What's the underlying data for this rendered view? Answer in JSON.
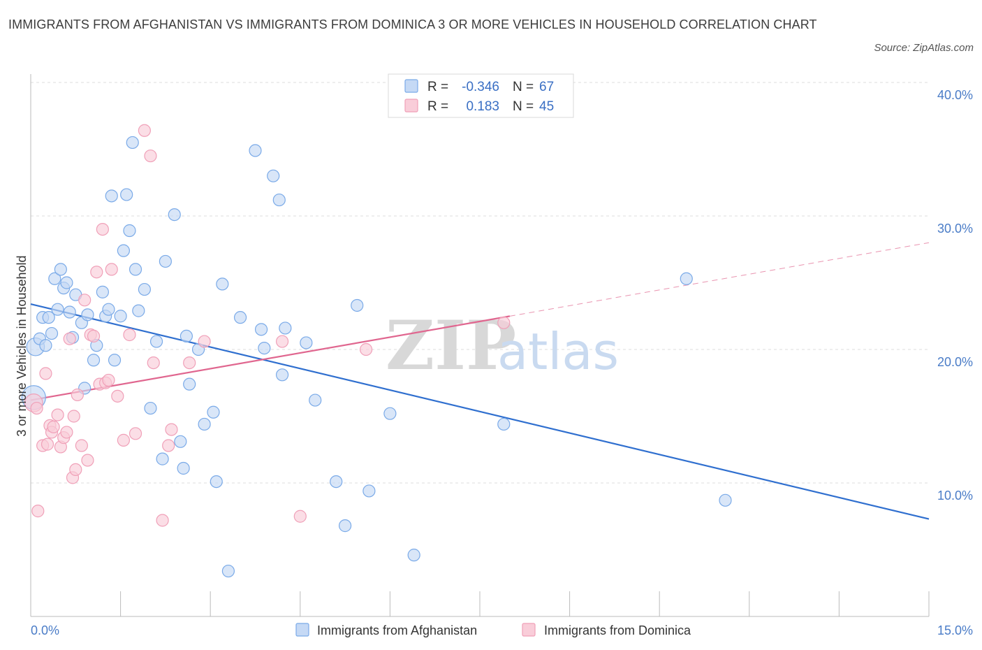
{
  "title": "IMMIGRANTS FROM AFGHANISTAN VS IMMIGRANTS FROM DOMINICA 3 OR MORE VEHICLES IN HOUSEHOLD CORRELATION CHART",
  "source": "Source: ZipAtlas.com",
  "watermark": {
    "zip": "ZIP",
    "atlas": "atlas"
  },
  "legend": {
    "rows": [
      {
        "r_label": "R =",
        "r_value": "-0.346",
        "n_label": "N =",
        "n_value": "67",
        "color": "#7aaae8"
      },
      {
        "r_label": "R =",
        "r_value": "0.183",
        "n_label": "N =",
        "n_value": "45",
        "color": "#f0a0b8"
      }
    ]
  },
  "colors": {
    "blue_fill": "#c5d9f5",
    "blue_stroke": "#7aaae8",
    "blue_line": "#2f6fcf",
    "pink_fill": "#f9cdd9",
    "pink_stroke": "#f0a0b8",
    "pink_line": "#e0668f",
    "grid": "#dddddd",
    "tick_text": "#4a7cc7"
  },
  "chart_data": {
    "type": "scatter",
    "title": "IMMIGRANTS FROM AFGHANISTAN VS IMMIGRANTS FROM DOMINICA 3 OR MORE VEHICLES IN HOUSEHOLD CORRELATION CHART",
    "xlabel": "",
    "ylabel": "3 or more Vehicles in Household",
    "xlim": [
      0,
      15
    ],
    "ylim": [
      0,
      40
    ],
    "x_tick_labels": {
      "min": "0.0%",
      "max": "15.0%"
    },
    "y_ticks": [
      {
        "value": 10,
        "label": "10.0%"
      },
      {
        "value": 20,
        "label": "20.0%"
      },
      {
        "value": 30,
        "label": "30.0%"
      },
      {
        "value": 40,
        "label": "40.0%"
      }
    ],
    "grid": true,
    "legend_position": "top-center",
    "series": [
      {
        "name": "Immigrants from Afghanistan",
        "color": "#7aaae8",
        "trend": {
          "x0": 0,
          "y0": 23.4,
          "x1": 15,
          "y1": 7.3,
          "solid_to": 15
        },
        "points": [
          [
            0.05,
            16.4,
            2
          ],
          [
            0.08,
            20.2,
            1.5
          ],
          [
            0.15,
            20.8,
            1
          ],
          [
            0.2,
            22.4,
            1
          ],
          [
            0.25,
            20.3,
            1
          ],
          [
            0.3,
            22.4,
            1
          ],
          [
            0.35,
            21.2,
            1
          ],
          [
            0.4,
            25.3,
            1
          ],
          [
            0.45,
            23.0,
            1
          ],
          [
            0.5,
            26.0,
            1
          ],
          [
            0.55,
            24.6,
            1
          ],
          [
            0.6,
            25.0,
            1
          ],
          [
            0.65,
            22.8,
            1
          ],
          [
            0.7,
            20.9,
            1
          ],
          [
            0.75,
            24.1,
            1
          ],
          [
            0.85,
            22.0,
            1
          ],
          [
            0.9,
            17.1,
            1
          ],
          [
            0.95,
            22.6,
            1
          ],
          [
            1.05,
            19.2,
            1
          ],
          [
            1.1,
            20.3,
            1
          ],
          [
            1.2,
            24.3,
            1
          ],
          [
            1.25,
            22.5,
            1
          ],
          [
            1.3,
            23.0,
            1
          ],
          [
            1.35,
            31.5,
            1
          ],
          [
            1.4,
            19.2,
            1
          ],
          [
            1.5,
            22.5,
            1
          ],
          [
            1.55,
            27.4,
            1
          ],
          [
            1.6,
            31.6,
            1
          ],
          [
            1.65,
            28.9,
            1
          ],
          [
            1.7,
            35.5,
            1
          ],
          [
            1.75,
            26.0,
            1
          ],
          [
            1.8,
            22.9,
            1
          ],
          [
            1.9,
            24.5,
            1
          ],
          [
            2.0,
            15.6,
            1
          ],
          [
            2.1,
            20.6,
            1
          ],
          [
            2.2,
            11.8,
            1
          ],
          [
            2.25,
            26.6,
            1
          ],
          [
            2.4,
            30.1,
            1
          ],
          [
            2.5,
            13.1,
            1
          ],
          [
            2.55,
            11.1,
            1
          ],
          [
            2.6,
            21.0,
            1
          ],
          [
            2.65,
            17.4,
            1
          ],
          [
            2.8,
            20.0,
            1
          ],
          [
            2.9,
            14.4,
            1
          ],
          [
            3.05,
            15.3,
            1
          ],
          [
            3.1,
            10.1,
            1
          ],
          [
            3.2,
            24.9,
            1
          ],
          [
            3.3,
            3.4,
            1
          ],
          [
            3.5,
            22.4,
            1
          ],
          [
            3.75,
            34.9,
            1
          ],
          [
            3.85,
            21.5,
            1
          ],
          [
            3.9,
            20.1,
            1
          ],
          [
            4.05,
            33.0,
            1
          ],
          [
            4.15,
            31.2,
            1
          ],
          [
            4.2,
            18.1,
            1
          ],
          [
            4.25,
            21.6,
            1
          ],
          [
            4.6,
            20.5,
            1
          ],
          [
            4.75,
            16.2,
            1
          ],
          [
            5.1,
            10.1,
            1
          ],
          [
            5.25,
            6.8,
            1
          ],
          [
            5.45,
            23.3,
            1
          ],
          [
            5.65,
            9.4,
            1
          ],
          [
            6.0,
            15.2,
            1
          ],
          [
            6.4,
            4.6,
            1
          ],
          [
            7.9,
            14.4,
            1
          ],
          [
            10.95,
            25.3,
            1
          ],
          [
            11.6,
            8.7,
            1
          ]
        ]
      },
      {
        "name": "Immigrants from Dominica",
        "color": "#f0a0b8",
        "trend": {
          "x0": 0,
          "y0": 16.2,
          "x1": 15,
          "y1": 28.0,
          "solid_to": 8.0
        },
        "points": [
          [
            0.05,
            16.0,
            1.5
          ],
          [
            0.1,
            15.6,
            1
          ],
          [
            0.12,
            7.9,
            1
          ],
          [
            0.2,
            12.8,
            1
          ],
          [
            0.25,
            18.2,
            1
          ],
          [
            0.28,
            12.9,
            1
          ],
          [
            0.32,
            14.3,
            1
          ],
          [
            0.35,
            13.8,
            1
          ],
          [
            0.38,
            14.2,
            1
          ],
          [
            0.45,
            15.1,
            1
          ],
          [
            0.5,
            12.7,
            1
          ],
          [
            0.55,
            13.4,
            1
          ],
          [
            0.6,
            13.8,
            1
          ],
          [
            0.65,
            20.8,
            1
          ],
          [
            0.7,
            10.4,
            1
          ],
          [
            0.72,
            15.0,
            1
          ],
          [
            0.75,
            11.0,
            1
          ],
          [
            0.78,
            16.6,
            1
          ],
          [
            0.85,
            12.8,
            1
          ],
          [
            0.9,
            23.7,
            1
          ],
          [
            0.95,
            11.7,
            1
          ],
          [
            1.0,
            21.1,
            1
          ],
          [
            1.05,
            21.0,
            1
          ],
          [
            1.1,
            25.8,
            1
          ],
          [
            1.15,
            17.4,
            1
          ],
          [
            1.2,
            29.0,
            1
          ],
          [
            1.25,
            17.5,
            1
          ],
          [
            1.3,
            17.7,
            1
          ],
          [
            1.35,
            26.0,
            1
          ],
          [
            1.45,
            16.5,
            1
          ],
          [
            1.55,
            13.2,
            1
          ],
          [
            1.65,
            21.1,
            1
          ],
          [
            1.75,
            13.7,
            1
          ],
          [
            1.9,
            36.4,
            1
          ],
          [
            2.0,
            34.5,
            1
          ],
          [
            2.05,
            19.0,
            1
          ],
          [
            2.2,
            7.2,
            1
          ],
          [
            2.3,
            12.8,
            1
          ],
          [
            2.35,
            14.0,
            1
          ],
          [
            2.65,
            19.0,
            1
          ],
          [
            2.9,
            20.6,
            1
          ],
          [
            4.2,
            20.6,
            1
          ],
          [
            4.5,
            7.5,
            1
          ],
          [
            5.6,
            20.0,
            1
          ],
          [
            7.9,
            22.0,
            1
          ]
        ]
      }
    ]
  }
}
